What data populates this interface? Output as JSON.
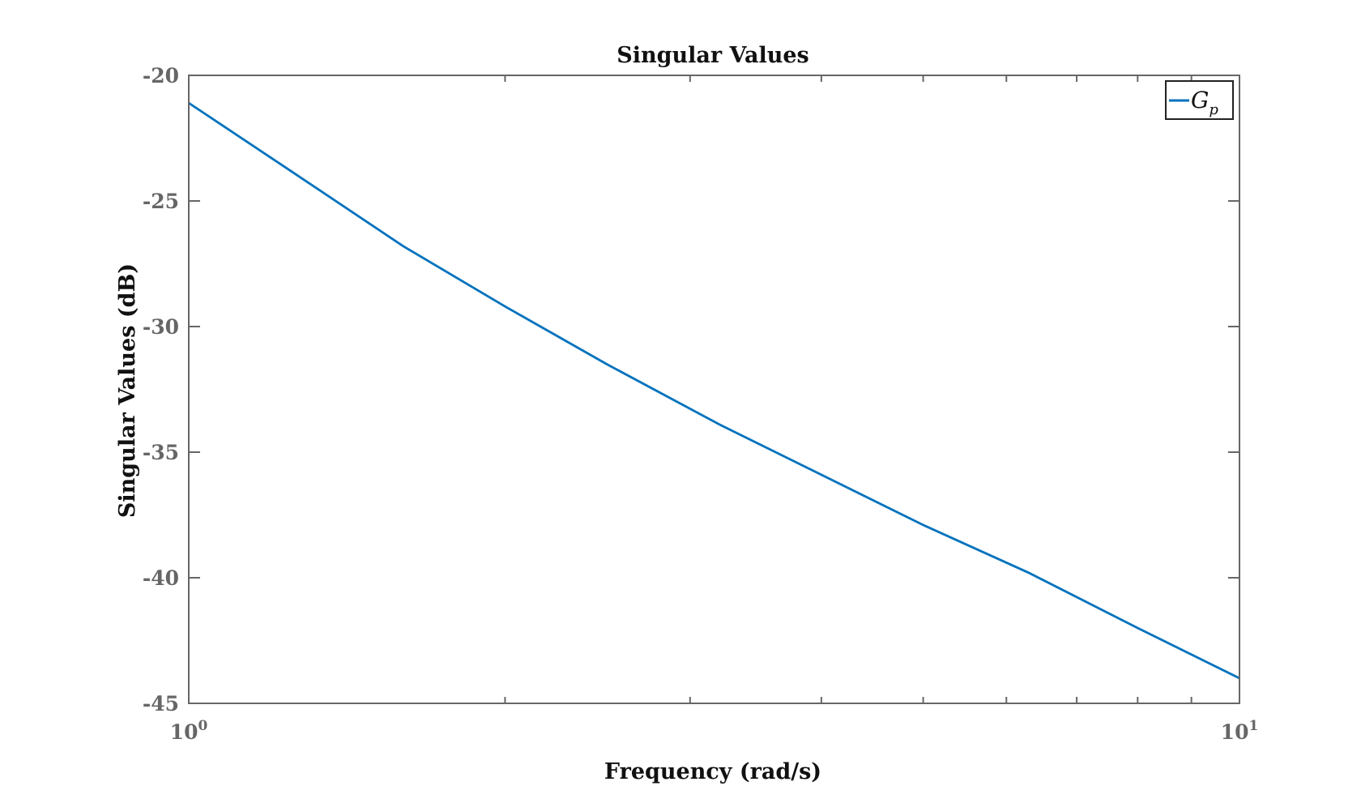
{
  "chart_data": {
    "type": "line",
    "title": "Singular Values",
    "xlabel": "Frequency (rad/s)",
    "ylabel": "Singular Values (dB)",
    "xscale": "log",
    "xlim": [
      1,
      10
    ],
    "ylim": [
      -45,
      -20
    ],
    "xticks": [
      {
        "value": 1,
        "base": "10",
        "exp": "0"
      },
      {
        "value": 10,
        "base": "10",
        "exp": "1"
      }
    ],
    "yticks": [
      {
        "value": -20,
        "label": "-20"
      },
      {
        "value": -25,
        "label": "-25"
      },
      {
        "value": -30,
        "label": "-30"
      },
      {
        "value": -35,
        "label": "-35"
      },
      {
        "value": -40,
        "label": "-40"
      },
      {
        "value": -45,
        "label": "-45"
      }
    ],
    "grid": false,
    "legend_position": "top-right",
    "series": [
      {
        "name": "G",
        "name_subscript": "p",
        "color": "#0072BD",
        "x": [
          1,
          1.25,
          1.6,
          2,
          2.5,
          3.2,
          4,
          5,
          6.3,
          8,
          10
        ],
        "y": [
          -21.1,
          -23.8,
          -26.8,
          -29.2,
          -31.5,
          -33.9,
          -35.9,
          -37.9,
          -39.8,
          -42.0,
          -44.0
        ]
      }
    ]
  }
}
